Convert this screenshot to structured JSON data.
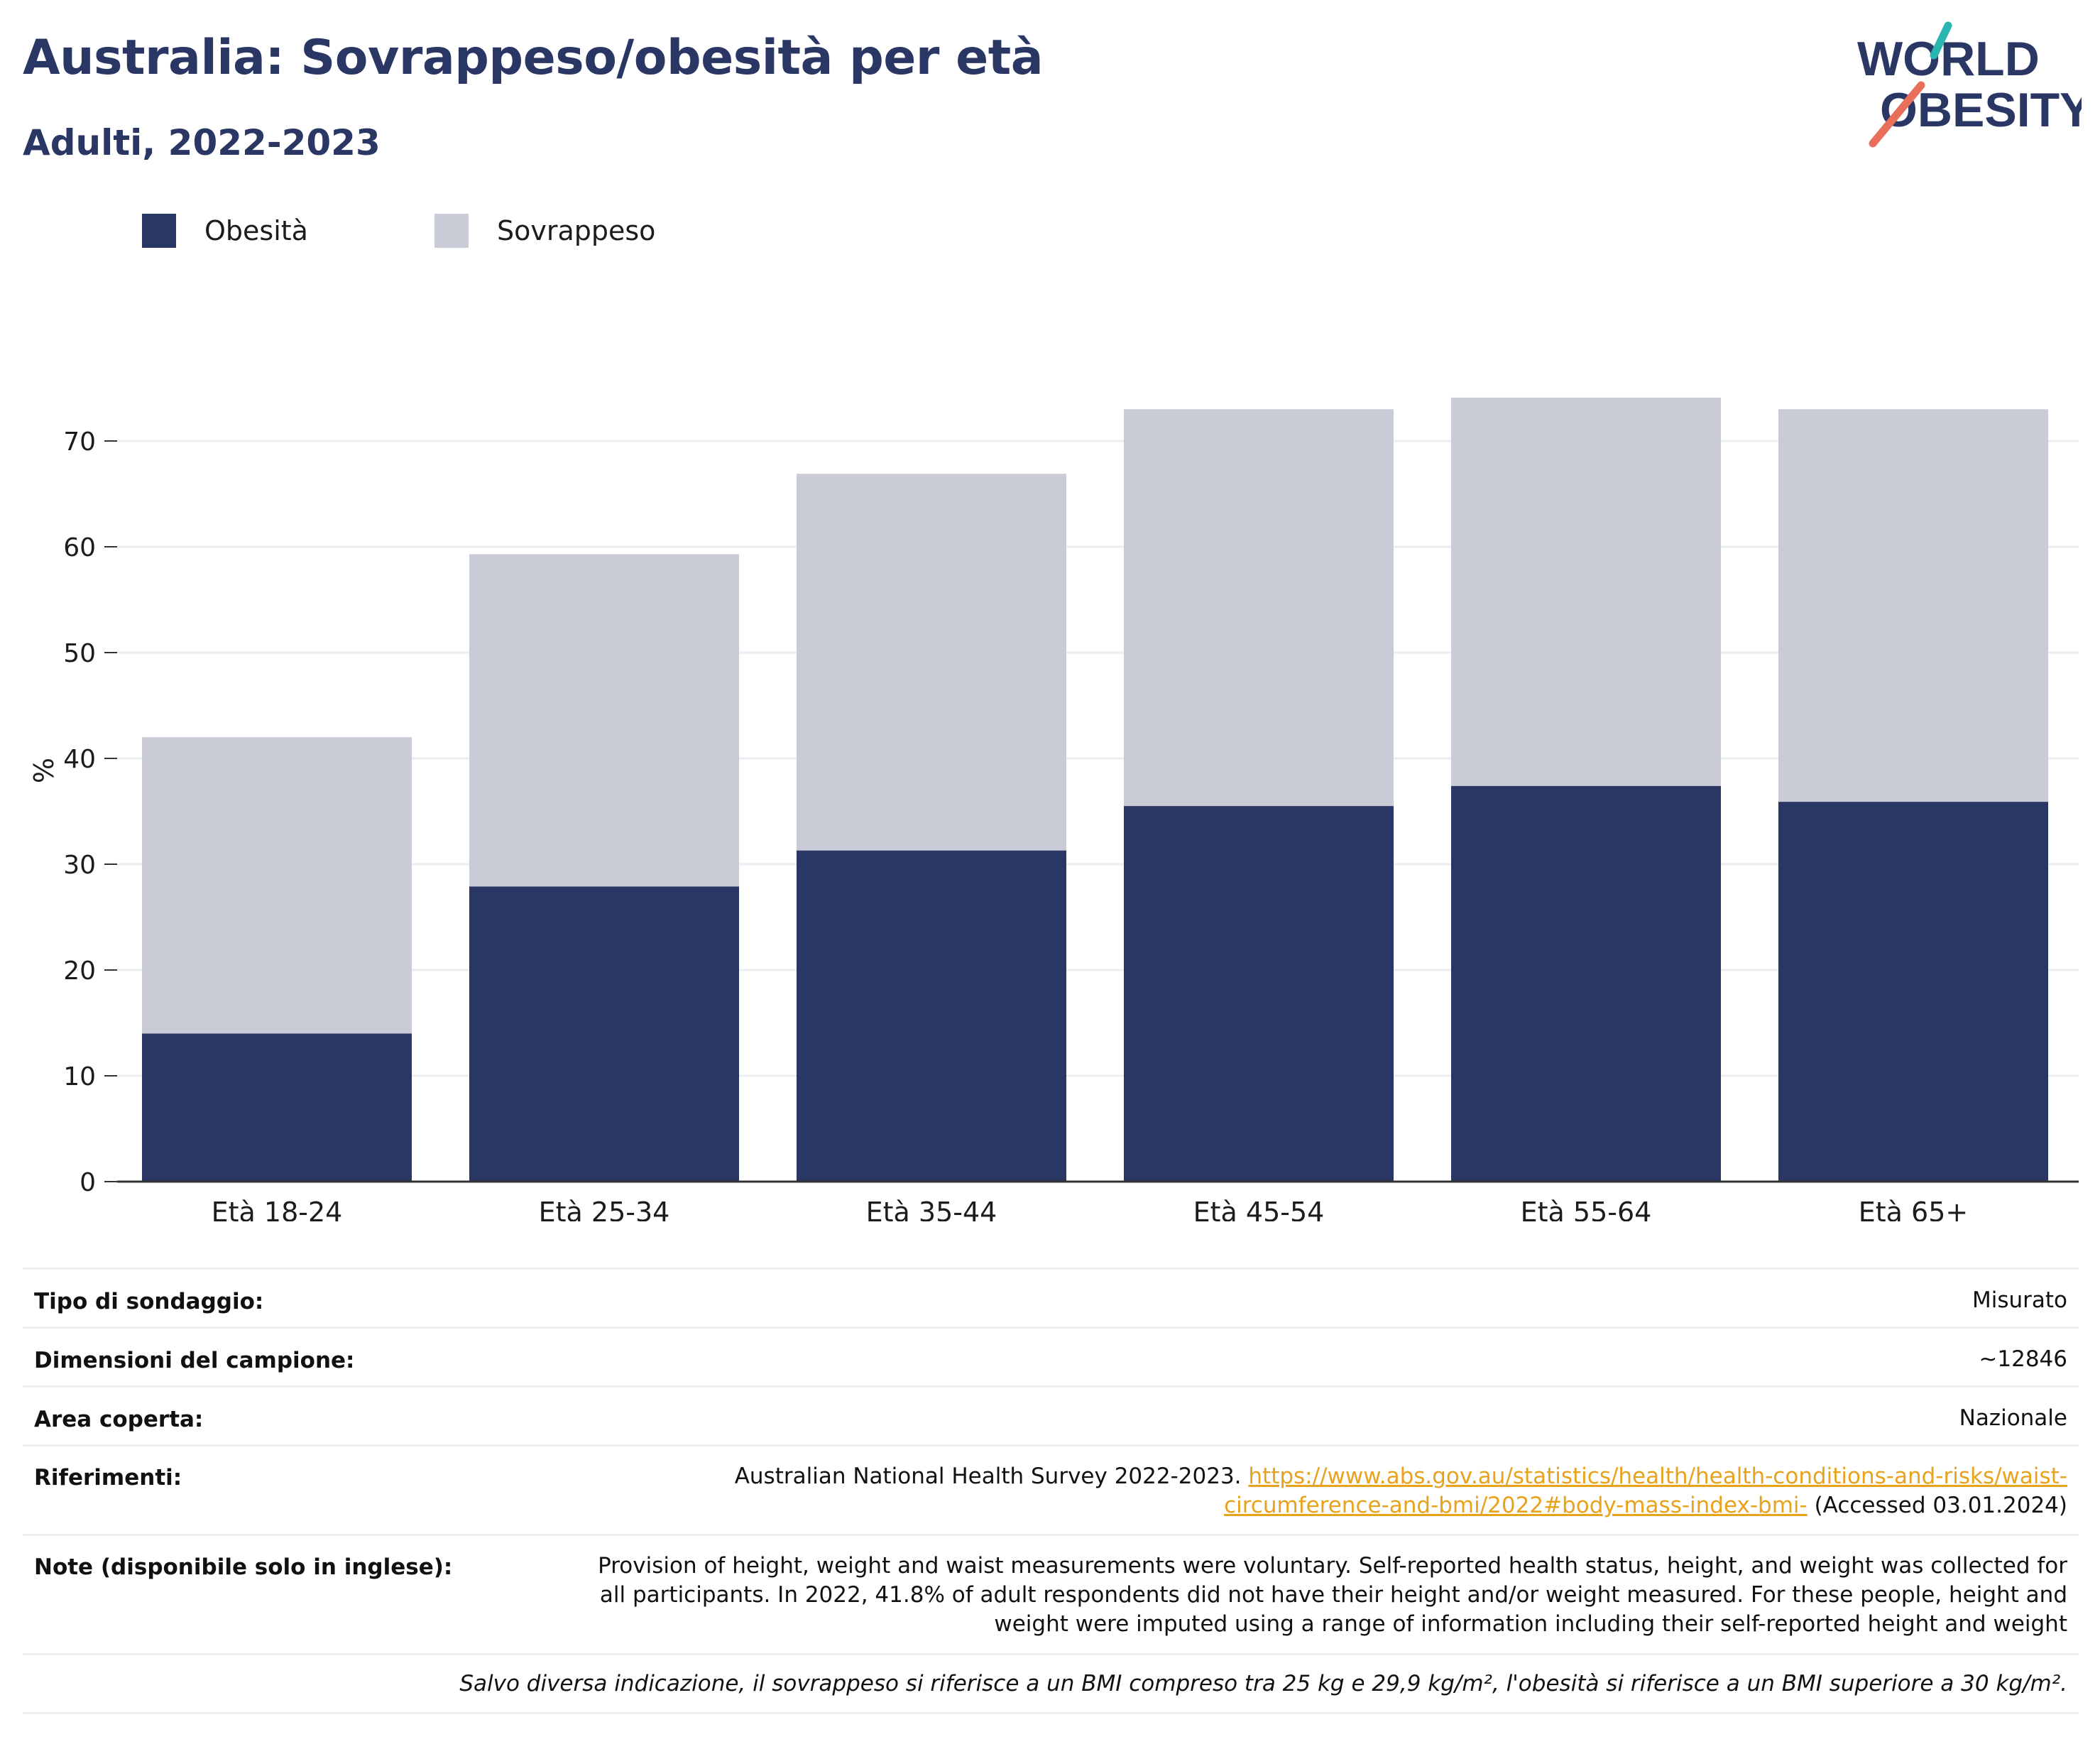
{
  "header": {
    "title": "Australia: Sovrappeso/obesità per età",
    "subtitle": "Adulti, 2022-2023"
  },
  "logo": {
    "line1": "WORLD",
    "line2": "OBESITY",
    "accent_color": "#e8705a",
    "teal_color": "#2bb5b0"
  },
  "legend": [
    {
      "label": "Obesità",
      "color": "#2a3765"
    },
    {
      "label": "Sovrappeso",
      "color": "#c9cbd6"
    }
  ],
  "chart_data": {
    "type": "bar",
    "stacked": true,
    "categories": [
      "Età 18-24",
      "Età 25-34",
      "Età 35-44",
      "Età 45-54",
      "Età 55-64",
      "Età 65+"
    ],
    "series": [
      {
        "name": "Obesità",
        "values": [
          14.0,
          27.9,
          31.3,
          35.5,
          37.4,
          35.9
        ],
        "color": "#2a3765"
      },
      {
        "name": "Sovrappeso",
        "values": [
          28.0,
          31.4,
          35.6,
          37.5,
          36.7,
          37.1
        ],
        "color": "#c9cbd6"
      }
    ],
    "ylabel": "%",
    "ylim": [
      0,
      80
    ],
    "yticks": [
      0,
      10,
      20,
      30,
      40,
      50,
      60,
      70
    ],
    "grid": true,
    "legend_position": "top-left"
  },
  "info": {
    "survey_type_label": "Tipo di sondaggio:",
    "survey_type_value": "Misurato",
    "sample_size_label": "Dimensioni del campione:",
    "sample_size_value": "~12846",
    "area_label": "Area coperta:",
    "area_value": "Nazionale",
    "references_label": "Riferimenti:",
    "references_text": "Australian National Health Survey 2022-2023.",
    "references_link_1": "https://www.abs.gov.au/statistics/health/health-conditions-and-risks/waist-",
    "references_link_2": "circumference-and-bmi/2022#body-mass-index-bmi-",
    "references_accessed": "(Accessed 03.01.2024)",
    "notes_label": "Note (disponibile solo in inglese):",
    "notes_line_1": "Provision of height, weight and waist measurements were voluntary. Self-reported health status, height, and weight was collected for",
    "notes_line_2": "all participants. In 2022, 41.8% of adult respondents did not have their height and/or weight measured. For these people, height and",
    "notes_line_3": "weight were imputed using a range of information including their self-reported height and weight",
    "footnote": "Salvo diversa indicazione, il sovrappeso si riferisce a un BMI compreso tra 25 kg e 29,9 kg/m², l'obesità si riferisce a un BMI superiore a 30 kg/m²."
  }
}
